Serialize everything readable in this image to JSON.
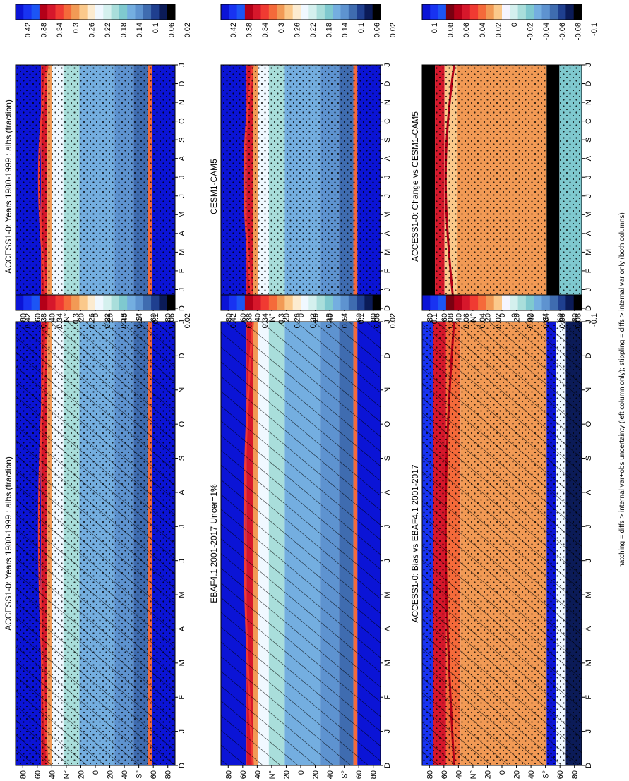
{
  "footnote": "hatching = diffs > internal var+obs uncertainty (left column only); stippling = diffs > internal var only (both columns)",
  "colorbars": {
    "absolute": {
      "labels": [
        "0.42",
        "0.38",
        "0.34",
        "0.3",
        "0.26",
        "0.22",
        "0.18",
        "0.14",
        "0.1",
        "0.06",
        "0.02"
      ],
      "colors": [
        "#0b14d6",
        "#1833f2",
        "#1c55f5",
        "#b40018",
        "#d6172b",
        "#f03a32",
        "#f56a3a",
        "#f29a55",
        "#fbc98b",
        "#fcebd0",
        "#f0f8ff",
        "#d4f0ee",
        "#a9dedb",
        "#7fc9cf",
        "#74aee0",
        "#5e93d0",
        "#3f6cb0",
        "#1f3f8f",
        "#0b1b58",
        "#000000"
      ]
    },
    "difference": {
      "labels": [
        "0.1",
        "0.08",
        "0.06",
        "0.04",
        "0.02",
        "0",
        "-0.02",
        "-0.04",
        "-0.06",
        "-0.08",
        "-0.1"
      ],
      "colors": [
        "#0b14d6",
        "#1833f2",
        "#1c55f5",
        "#7a0010",
        "#b40018",
        "#d6172b",
        "#f03a32",
        "#f56a3a",
        "#f29a55",
        "#fbc98b",
        "#f5f5ff",
        "#d4f0ee",
        "#a9dedb",
        "#7fc9cf",
        "#74aee0",
        "#5e93d0",
        "#3f6cb0",
        "#1f3f8f",
        "#0b1b58",
        "#000000"
      ]
    }
  },
  "axis_ticks": {
    "months": [
      "D",
      "J",
      "F",
      "M",
      "A",
      "M",
      "J",
      "J",
      "A",
      "S",
      "O",
      "N",
      "D",
      "J"
    ],
    "latitudes": [
      "80",
      "60",
      "40",
      "N°",
      "20",
      "0",
      "20",
      "40",
      "S°",
      "60",
      "80"
    ]
  },
  "chart_data": [
    {
      "type": "heatmap",
      "title": "ACCESS1-0: Years 1980-1999 : albs (fraction)",
      "x": [
        "D",
        "J",
        "F",
        "M",
        "A",
        "M",
        "J",
        "J",
        "A",
        "S",
        "O",
        "N",
        "D",
        "J"
      ],
      "y": [
        "80N",
        "60N",
        "40N",
        "20N",
        "0",
        "20S",
        "40S",
        "60S",
        "80S"
      ],
      "colorbar": "absolute",
      "clim": [
        0.02,
        0.42
      ],
      "overlay": "hatching+stippling",
      "panel": "left-top"
    },
    {
      "type": "heatmap",
      "title": "EBAF4.1 2001-2017 Uncer=1%",
      "x": [
        "D",
        "J",
        "F",
        "M",
        "A",
        "M",
        "J",
        "J",
        "A",
        "S",
        "O",
        "N",
        "D",
        "J"
      ],
      "y": [
        "80N",
        "60N",
        "40N",
        "20N",
        "0",
        "20S",
        "40S",
        "60S",
        "80S"
      ],
      "colorbar": "absolute",
      "clim": [
        0.02,
        0.42
      ],
      "overlay": "hatching",
      "panel": "left-middle"
    },
    {
      "type": "heatmap",
      "title": "ACCESS1-0: Bias vs EBAF4.1 2001-2017",
      "x": [
        "D",
        "J",
        "F",
        "M",
        "A",
        "M",
        "J",
        "J",
        "A",
        "S",
        "O",
        "N",
        "D",
        "J"
      ],
      "y": [
        "80N",
        "60N",
        "40N",
        "20N",
        "0",
        "20S",
        "40S",
        "60S",
        "80S"
      ],
      "colorbar": "difference",
      "clim": [
        -0.1,
        0.1
      ],
      "overlay": "hatching+stippling",
      "panel": "left-bottom"
    },
    {
      "type": "heatmap",
      "title": "ACCESS1-0: Years 1980-1999 : albs (fraction)",
      "x": [
        "D",
        "J",
        "F",
        "M",
        "A",
        "M",
        "J",
        "J",
        "A",
        "S",
        "O",
        "N",
        "D",
        "J"
      ],
      "y": [
        "80N",
        "60N",
        "40N",
        "20N",
        "0",
        "20S",
        "40S",
        "60S",
        "80S"
      ],
      "colorbar": "absolute",
      "clim": [
        0.02,
        0.42
      ],
      "overlay": "stippling",
      "panel": "right-top"
    },
    {
      "type": "heatmap",
      "title": "CESM1-CAM5",
      "x": [
        "D",
        "J",
        "F",
        "M",
        "A",
        "M",
        "J",
        "J",
        "A",
        "S",
        "O",
        "N",
        "D",
        "J"
      ],
      "y": [
        "80N",
        "60N",
        "40N",
        "20N",
        "0",
        "20S",
        "40S",
        "60S",
        "80S"
      ],
      "colorbar": "absolute",
      "clim": [
        0.02,
        0.42
      ],
      "overlay": "stippling",
      "panel": "right-middle"
    },
    {
      "type": "heatmap",
      "title": "ACCESS1-0: Change vs CESM1-CAM5",
      "x": [
        "D",
        "J",
        "F",
        "M",
        "A",
        "M",
        "J",
        "J",
        "A",
        "S",
        "O",
        "N",
        "D",
        "J"
      ],
      "y": [
        "80N",
        "60N",
        "40N",
        "20N",
        "0",
        "20S",
        "40S",
        "60S",
        "80S"
      ],
      "colorbar": "difference",
      "clim": [
        -0.1,
        0.1
      ],
      "overlay": "stippling",
      "panel": "right-bottom"
    }
  ]
}
